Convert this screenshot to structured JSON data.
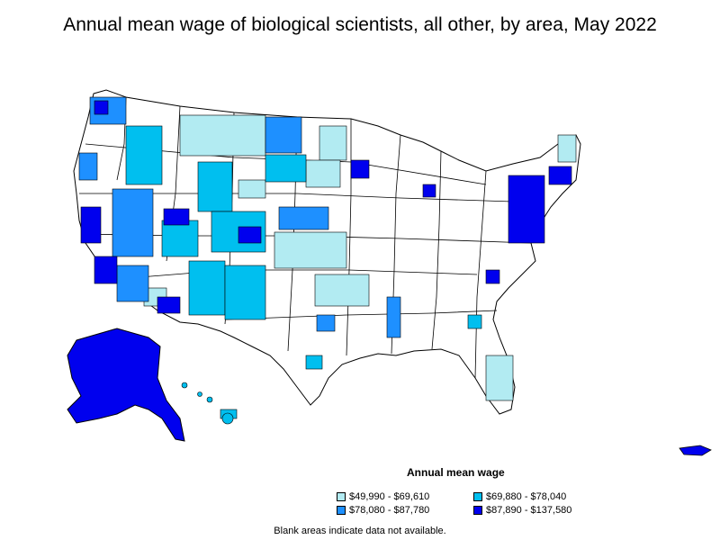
{
  "title": "Annual mean wage of biological scientists, all other, by area, May 2022",
  "legend": {
    "title": "Annual mean wage",
    "items": [
      {
        "label": "$49,990 - $69,610",
        "color": "#b2ebf2"
      },
      {
        "label": "$69,880 - $78,040",
        "color": "#00bfef"
      },
      {
        "label": "$78,080 - $87,780",
        "color": "#1e90ff"
      },
      {
        "label": "$87,890 - $137,580",
        "color": "#0000ee"
      }
    ]
  },
  "footnote": "Blank areas indicate data not available.",
  "colors": {
    "blank": "#ffffff",
    "border": "#000000"
  }
}
